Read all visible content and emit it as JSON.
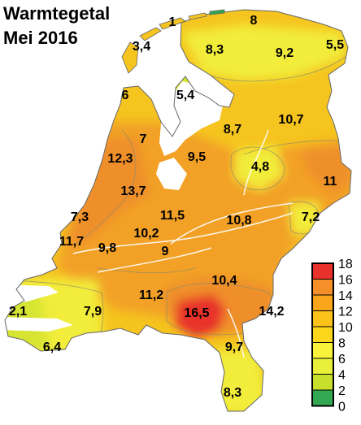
{
  "title_line1": "Warmtegetal",
  "title_line2": "Mei 2016",
  "station_values": [
    {
      "id": "schiermonnikoog",
      "label": "1"
    },
    {
      "id": "groningen-north",
      "label": "8"
    },
    {
      "id": "texel",
      "label": "3,4"
    },
    {
      "id": "friesland",
      "label": "8,3"
    },
    {
      "id": "groningen",
      "label": "9,2"
    },
    {
      "id": "nieuw-beerta",
      "label": "5,5"
    },
    {
      "id": "den-helder",
      "label": "6"
    },
    {
      "id": "wieringerwerf",
      "label": "5,4"
    },
    {
      "id": "hoorn",
      "label": "7"
    },
    {
      "id": "lelystad",
      "label": "8,7"
    },
    {
      "id": "hoogeveen",
      "label": "10,7"
    },
    {
      "id": "amsterdam",
      "label": "12,3"
    },
    {
      "id": "flevoland",
      "label": "9,5"
    },
    {
      "id": "heino",
      "label": "4,8"
    },
    {
      "id": "twenthe",
      "label": "11"
    },
    {
      "id": "schiphol",
      "label": "13,7"
    },
    {
      "id": "den-haag",
      "label": "7,3"
    },
    {
      "id": "de-bilt",
      "label": "11,5"
    },
    {
      "id": "deelen",
      "label": "10,8"
    },
    {
      "id": "hupsel",
      "label": "7,2"
    },
    {
      "id": "rotterdam-west",
      "label": "11,7"
    },
    {
      "id": "rotterdam",
      "label": "9,8"
    },
    {
      "id": "cabauw",
      "label": "10,2"
    },
    {
      "id": "herwijnen",
      "label": "9"
    },
    {
      "id": "volkel",
      "label": "10,4"
    },
    {
      "id": "vlissingen",
      "label": "2,1"
    },
    {
      "id": "woensdrecht",
      "label": "7,9"
    },
    {
      "id": "gilze-rijen",
      "label": "11,2"
    },
    {
      "id": "eindhoven",
      "label": "16,5"
    },
    {
      "id": "arcen",
      "label": "14,2"
    },
    {
      "id": "westdorpe",
      "label": "6,4"
    },
    {
      "id": "ell",
      "label": "9,7"
    },
    {
      "id": "maastricht",
      "label": "8,3"
    }
  ],
  "legend": {
    "ticks": [
      "18",
      "16",
      "14",
      "12",
      "10",
      "8",
      "6",
      "4",
      "2",
      "0"
    ],
    "colors": [
      "#e8312a",
      "#f58f2a",
      "#f8a51c",
      "#fbc21a",
      "#fbd61a",
      "#f9f23a",
      "#e8f03a",
      "#c8e02c",
      "#32a852"
    ]
  },
  "colors": {
    "land_base": "#f5c41e",
    "warm": "#f2a126",
    "warmer": "#ef8f2a",
    "hot": "#e8312a",
    "cool": "#f2ec3a",
    "cooler": "#d6e531",
    "coldest": "#2fa84f",
    "water": "#ffffff"
  }
}
